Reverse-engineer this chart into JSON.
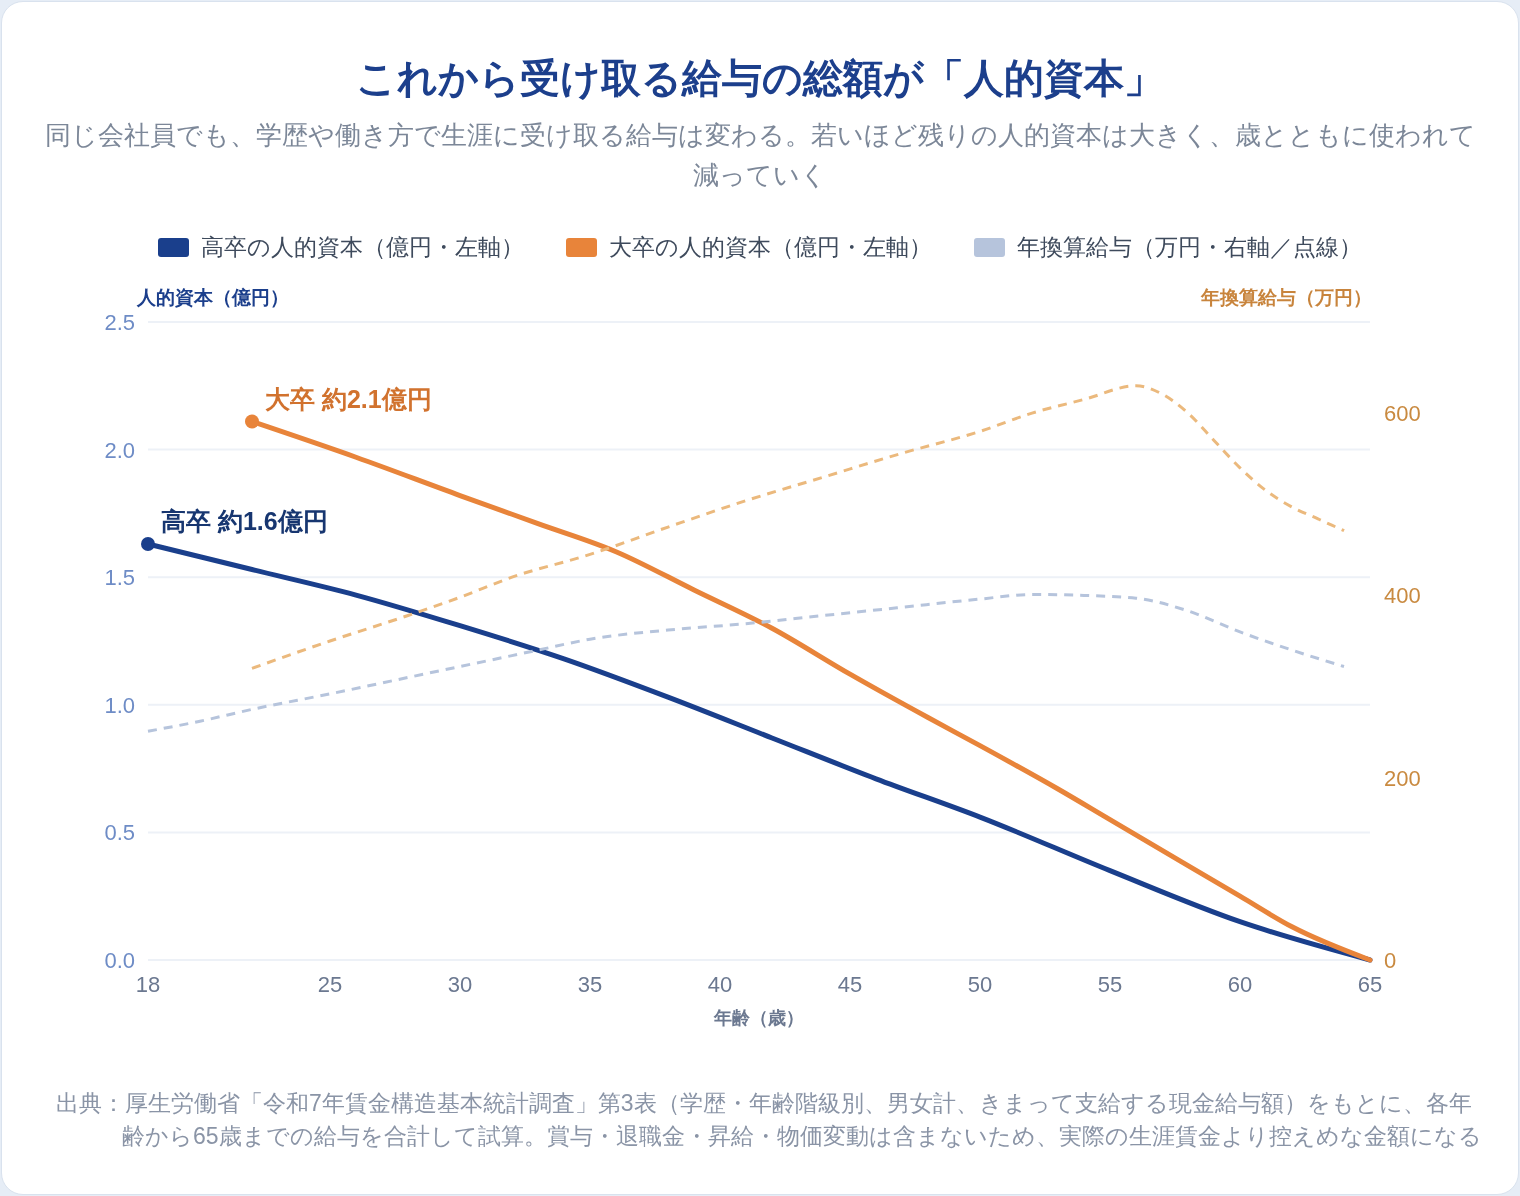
{
  "chart_data": {
    "type": "line",
    "title": "これから受け取る給与の総額が「人的資本」",
    "subtitle": "同じ会社員でも、学歴や働き方で生涯に受け取る給与は変わる。若いほど残りの人的資本は大きく、歳とともに使われて減っていく",
    "xlabel": "年齢（歳）",
    "ylabel": "人的資本（億円）",
    "y2label": "年換算給与（万円）",
    "xlim": [
      18,
      65
    ],
    "xticks": [
      18,
      25,
      30,
      35,
      40,
      45,
      50,
      55,
      60,
      65
    ],
    "ylim": [
      0,
      2.5
    ],
    "yticks": [
      {
        "value": 0,
        "label": "0.0"
      },
      0.5,
      {
        "value": 1,
        "label": "1.0"
      },
      1.5,
      {
        "value": 2,
        "label": "2.0"
      },
      2.5
    ],
    "y2lim": [
      0,
      700
    ],
    "y2ticks": [
      0,
      200,
      400,
      600
    ],
    "grid": "y",
    "legend": "top",
    "series": [
      {
        "name": "高卒の人的資本（億円・左軸）",
        "color": "#1a3f8c",
        "x": [
          18,
          22,
          26,
          30,
          34,
          38,
          42,
          46,
          50,
          55,
          60,
          65
        ],
        "values": [
          1.63,
          1.53,
          1.43,
          1.31,
          1.18,
          1.03,
          0.87,
          0.71,
          0.56,
          0.35,
          0.15,
          0
        ]
      },
      {
        "name": "大卒の人的資本（億円・左軸）",
        "color": "#e8843a",
        "x": [
          22,
          26,
          30,
          33,
          36,
          39,
          42,
          45,
          48,
          50,
          53,
          55,
          58,
          60,
          62,
          65
        ],
        "values": [
          2.11,
          1.97,
          1.82,
          1.71,
          1.6,
          1.45,
          1.3,
          1.12,
          0.95,
          0.84,
          0.67,
          0.55,
          0.37,
          0.25,
          0.13,
          0
        ]
      },
      {
        "name": "年換算給与（万円・右軸／点線）",
        "color": "#b6c4dc",
        "axis": "y2",
        "line_style": "dashed",
        "x": [
          18,
          20,
          22,
          25,
          28,
          30,
          33,
          35,
          38,
          41,
          44,
          47,
          50,
          52,
          54,
          56,
          58,
          60,
          62,
          64
        ],
        "values": [
          251,
          262,
          275,
          292,
          310,
          322,
          340,
          352,
          362,
          369,
          378,
          387,
          396,
          401,
          400,
          397,
          383,
          360,
          340,
          322
        ]
      },
      {
        "color": "#ebb97d",
        "axis": "y2",
        "line_style": "dashed",
        "x": [
          22,
          25,
          28,
          30,
          32,
          35,
          38,
          41,
          44,
          47,
          50,
          52,
          54,
          56,
          57,
          58,
          59,
          60,
          61,
          62,
          63,
          64
        ],
        "values": [
          320,
          350,
          378,
          398,
          420,
          445,
          475,
          504,
          530,
          556,
          580,
          600,
          615,
          630,
          621,
          600,
          570,
          540,
          515,
          497,
          484,
          471
        ]
      },
      {
        "type": "scatter",
        "color": "#1a3f8c",
        "marker": "circle",
        "x": [
          18
        ],
        "values": [
          1.63
        ]
      },
      {
        "type": "scatter",
        "color": "#e8843a",
        "marker": "circle",
        "x": [
          22
        ],
        "values": [
          2.11
        ]
      }
    ],
    "annotations": [
      {
        "text": "大卒 約2.1億円",
        "x": 22,
        "y": 2.11
      },
      {
        "text": "高卒 約1.6億円",
        "x": 18,
        "y": 1.63
      },
      "出典：厚生労働省「令和7年賃金構造基本統計調査」第3表（学歴・年齢階級別、男女計、きまって支給する現金給与額）をもとに、各年齢から65歳までの給与を合計して試算。賞与・退職金・昇給・物価変動は含まないため、実際の生涯賃金より控えめな金額になる"
    ]
  }
}
